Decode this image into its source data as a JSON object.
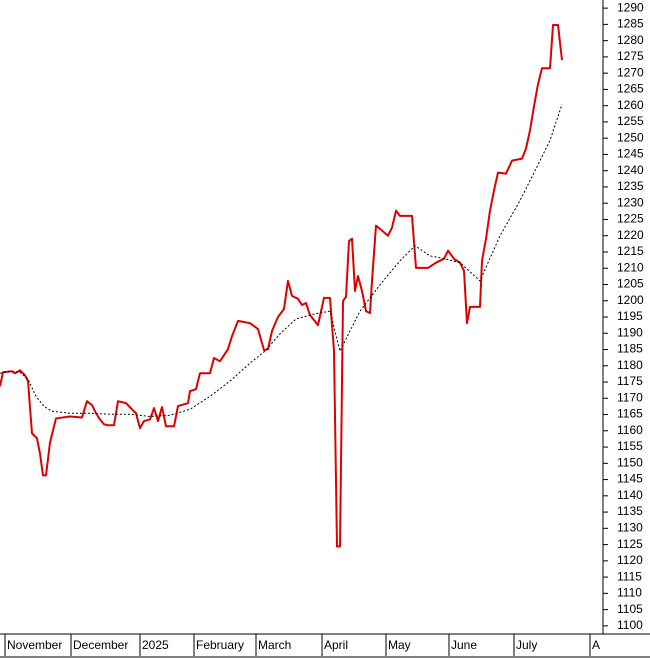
{
  "chart_data": {
    "type": "line",
    "xlim": [
      0,
      603
    ],
    "xticks": [
      {
        "value": 5,
        "label": "November"
      },
      {
        "value": 71,
        "label": "December"
      },
      {
        "value": 140,
        "label": "2025"
      },
      {
        "value": 194,
        "label": "February"
      },
      {
        "value": 256,
        "label": "March"
      },
      {
        "value": 322,
        "label": "April"
      },
      {
        "value": 386,
        "label": "May"
      },
      {
        "value": 449,
        "label": "June"
      },
      {
        "value": 514,
        "label": "July"
      },
      {
        "value": 590,
        "label": "A"
      }
    ],
    "ylim": [
      1097.5,
      1292.5
    ],
    "yticks": [
      1100,
      1105,
      1110,
      1115,
      1120,
      1125,
      1130,
      1135,
      1140,
      1145,
      1150,
      1155,
      1160,
      1165,
      1170,
      1175,
      1180,
      1185,
      1190,
      1195,
      1200,
      1205,
      1210,
      1215,
      1220,
      1225,
      1230,
      1235,
      1240,
      1245,
      1250,
      1255,
      1260,
      1265,
      1270,
      1275,
      1280,
      1285,
      1290
    ],
    "series": [
      {
        "color": "#dd0000",
        "style": "solid",
        "x": [
          0,
          3,
          12,
          15,
          20,
          25,
          28,
          32,
          37,
          40,
          43,
          46,
          50,
          56,
          70,
          82,
          87,
          92,
          96,
          100,
          104,
          108,
          114,
          118,
          126,
          132,
          136,
          140,
          144,
          150,
          154,
          158,
          162,
          166,
          174,
          178,
          188,
          190,
          196,
          200,
          210,
          214,
          220,
          228,
          232,
          238,
          250,
          258,
          264,
          268,
          272,
          278,
          284,
          288,
          292,
          298,
          302,
          306,
          310,
          318,
          324,
          330,
          334,
          337,
          340,
          343,
          346,
          349,
          352,
          355,
          358,
          362,
          366,
          370,
          372,
          376,
          380,
          388,
          392,
          396,
          400,
          412,
          416,
          428,
          436,
          444,
          448,
          454,
          460,
          464,
          467,
          470,
          480,
          482,
          486,
          490,
          494,
          498,
          506,
          512,
          522,
          526,
          530,
          534,
          538,
          542,
          550,
          553,
          558,
          562
        ],
        "values": [
          1173.7,
          1178.0,
          1178.3,
          1177.7,
          1178.6,
          1177.1,
          1175.3,
          1159.2,
          1157.7,
          1153.0,
          1146.3,
          1146.3,
          1156.4,
          1163.8,
          1164.4,
          1164.1,
          1169.1,
          1167.9,
          1165.4,
          1163.5,
          1162.0,
          1161.7,
          1161.7,
          1169.1,
          1168.5,
          1166.6,
          1165.4,
          1160.8,
          1163.0,
          1163.5,
          1167.0,
          1163.0,
          1167.3,
          1161.4,
          1161.4,
          1167.6,
          1168.5,
          1172.2,
          1172.8,
          1177.7,
          1177.7,
          1182.4,
          1181.4,
          1185.1,
          1189.1,
          1193.8,
          1193.1,
          1191.3,
          1184.8,
          1185.1,
          1190.7,
          1195.0,
          1197.5,
          1206.1,
          1201.5,
          1200.6,
          1198.7,
          1199.3,
          1195.6,
          1192.5,
          1200.9,
          1200.9,
          1184.5,
          1124.4,
          1124.4,
          1199.9,
          1201.2,
          1218.4,
          1219.1,
          1203.0,
          1207.6,
          1203.0,
          1196.8,
          1196.2,
          1206.1,
          1223.1,
          1222.1,
          1220.0,
          1222.5,
          1227.7,
          1226.1,
          1226.1,
          1210.1,
          1210.1,
          1211.7,
          1212.9,
          1215.4,
          1212.9,
          1211.7,
          1209.2,
          1193.1,
          1198.1,
          1198.1,
          1212.3,
          1219.1,
          1227.7,
          1233.9,
          1239.4,
          1239.1,
          1243.1,
          1243.7,
          1246.8,
          1252.4,
          1259.8,
          1266.6,
          1271.5,
          1271.5,
          1284.8,
          1284.8,
          1274.0
        ]
      },
      {
        "color": "#000000",
        "style": "dashed",
        "x": [
          0,
          10,
          20,
          28,
          36,
          44,
          52,
          70,
          90,
          110,
          130,
          150,
          170,
          190,
          210,
          230,
          250,
          265,
          280,
          296,
          314,
          330,
          340,
          350,
          360,
          380,
          400,
          415,
          430,
          445,
          460,
          480,
          500,
          520,
          535,
          550,
          562
        ],
        "values": [
          1177.7,
          1178.3,
          1178.0,
          1175.9,
          1170.6,
          1167.5,
          1166.0,
          1165.4,
          1165.4,
          1165.1,
          1165.1,
          1164.4,
          1164.8,
          1166.6,
          1170.6,
          1175.3,
          1180.8,
          1184.5,
          1189.8,
          1194.4,
          1195.9,
          1196.8,
          1184.5,
          1190.7,
          1196.8,
          1204.9,
          1212.3,
          1216.9,
          1213.8,
          1212.9,
          1211.7,
          1206.1,
          1220.0,
          1230.8,
          1240.0,
          1249.3,
          1260.4
        ]
      }
    ]
  }
}
